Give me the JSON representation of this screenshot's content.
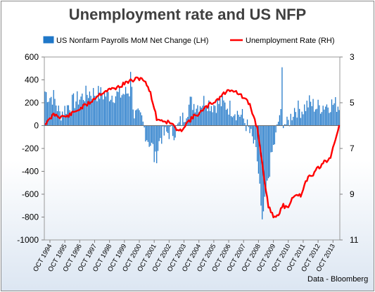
{
  "chart_data": {
    "type": "bar+line",
    "title": "Unemployment rate and US NFP",
    "source": "Data - Bloomberg",
    "legend": {
      "position": "top",
      "series_bar": "US  Nonfarm Payrolls MoM Net Change (LH)",
      "series_line": "Unemployment Rate (RH)"
    },
    "colors": {
      "bar": "#1f77c8",
      "line": "#ff0000"
    },
    "y_left": {
      "min": -1000,
      "max": 600,
      "ticks": [
        600,
        400,
        200,
        0,
        -200,
        -400,
        -600,
        -800,
        -1000
      ]
    },
    "y_right": {
      "min": 3,
      "max": 11,
      "inverted": true,
      "ticks": [
        3,
        5,
        7,
        9,
        11
      ]
    },
    "x_ticks": [
      "OCT 1994",
      "OCT 1995",
      "OCT 1996",
      "OCT 1997",
      "OCT 1998",
      "OCT 1999",
      "OCT 2000",
      "OCT 2001",
      "OCT 2002",
      "OCT 2003",
      "OCT 2004",
      "OCT 2005",
      "OCT 2006",
      "OCT 2007",
      "OCT 2008",
      "OCT 2009",
      "OCT 2010",
      "OCT 2011",
      "OCT 2012",
      "OCT 2013"
    ],
    "x_range": {
      "start": "1994-06",
      "end": "2014-03"
    },
    "nfp_anchors": [
      [
        "1994-06",
        300
      ],
      [
        "1994-09",
        250
      ],
      [
        "1995-01",
        250
      ],
      [
        "1995-06",
        100
      ],
      [
        "1996-01",
        180
      ],
      [
        "1996-10",
        240
      ],
      [
        "1997-06",
        290
      ],
      [
        "1998-06",
        270
      ],
      [
        "1999-06",
        270
      ],
      [
        "2000-04",
        300
      ],
      [
        "2000-06",
        100
      ],
      [
        "2000-12",
        50
      ],
      [
        "2001-04",
        -100
      ],
      [
        "2001-09",
        -200
      ],
      [
        "2001-11",
        -300
      ],
      [
        "2002-03",
        -100
      ],
      [
        "2002-09",
        -60
      ],
      [
        "2003-03",
        -50
      ],
      [
        "2003-09",
        60
      ],
      [
        "2004-03",
        200
      ],
      [
        "2004-09",
        180
      ],
      [
        "2005-03",
        220
      ],
      [
        "2005-09",
        180
      ],
      [
        "2006-03",
        200
      ],
      [
        "2006-09",
        170
      ],
      [
        "2007-03",
        130
      ],
      [
        "2007-09",
        80
      ],
      [
        "2008-01",
        -10
      ],
      [
        "2008-06",
        -150
      ],
      [
        "2008-09",
        -300
      ],
      [
        "2008-12",
        -660
      ],
      [
        "2009-01",
        -790
      ],
      [
        "2009-03",
        -700
      ],
      [
        "2009-06",
        -450
      ],
      [
        "2009-09",
        -240
      ],
      [
        "2009-12",
        -100
      ],
      [
        "2010-03",
        100
      ],
      [
        "2010-09",
        0
      ],
      [
        "2011-03",
        150
      ],
      [
        "2011-09",
        140
      ],
      [
        "2012-03",
        200
      ],
      [
        "2012-09",
        160
      ],
      [
        "2013-03",
        180
      ],
      [
        "2013-09",
        190
      ],
      [
        "2014-03",
        180
      ]
    ],
    "nfp_peaks": [
      [
        "2000-03",
        470
      ],
      [
        "2010-05",
        510
      ],
      [
        "2001-10",
        -320
      ],
      [
        "2008-12",
        -700
      ],
      [
        "2009-01",
        -820
      ],
      [
        "2009-02",
        -750
      ]
    ],
    "unemployment_rate": [
      [
        "1994-06",
        5.9
      ],
      [
        "1994-09",
        5.8
      ],
      [
        "1995-01",
        5.5
      ],
      [
        "1995-06",
        5.6
      ],
      [
        "1995-12",
        5.6
      ],
      [
        "1996-06",
        5.4
      ],
      [
        "1996-12",
        5.2
      ],
      [
        "1997-06",
        5.0
      ],
      [
        "1997-12",
        4.7
      ],
      [
        "1998-06",
        4.5
      ],
      [
        "1998-12",
        4.4
      ],
      [
        "1999-06",
        4.3
      ],
      [
        "1999-12",
        4.1
      ],
      [
        "2000-06",
        4.0
      ],
      [
        "2000-12",
        3.9
      ],
      [
        "2001-06",
        4.4
      ],
      [
        "2001-09",
        5.0
      ],
      [
        "2001-12",
        5.7
      ],
      [
        "2002-06",
        5.8
      ],
      [
        "2002-12",
        5.9
      ],
      [
        "2003-06",
        6.3
      ],
      [
        "2003-12",
        5.9
      ],
      [
        "2004-06",
        5.6
      ],
      [
        "2004-12",
        5.4
      ],
      [
        "2005-06",
        5.1
      ],
      [
        "2005-12",
        4.9
      ],
      [
        "2006-06",
        4.6
      ],
      [
        "2006-12",
        4.4
      ],
      [
        "2007-06",
        4.6
      ],
      [
        "2007-12",
        4.9
      ],
      [
        "2008-03",
        5.1
      ],
      [
        "2008-06",
        5.6
      ],
      [
        "2008-09",
        6.1
      ],
      [
        "2008-12",
        7.2
      ],
      [
        "2009-03",
        8.6
      ],
      [
        "2009-06",
        9.5
      ],
      [
        "2009-10",
        10.0
      ],
      [
        "2010-03",
        9.8
      ],
      [
        "2010-06",
        9.5
      ],
      [
        "2010-09",
        9.6
      ],
      [
        "2010-12",
        9.3
      ],
      [
        "2011-03",
        9.0
      ],
      [
        "2011-06",
        9.1
      ],
      [
        "2011-09",
        9.0
      ],
      [
        "2011-12",
        8.5
      ],
      [
        "2012-03",
        8.2
      ],
      [
        "2012-06",
        8.2
      ],
      [
        "2012-09",
        7.8
      ],
      [
        "2012-12",
        7.8
      ],
      [
        "2013-03",
        7.5
      ],
      [
        "2013-06",
        7.6
      ],
      [
        "2013-09",
        7.2
      ],
      [
        "2013-12",
        6.7
      ],
      [
        "2014-03",
        6.0
      ]
    ]
  }
}
